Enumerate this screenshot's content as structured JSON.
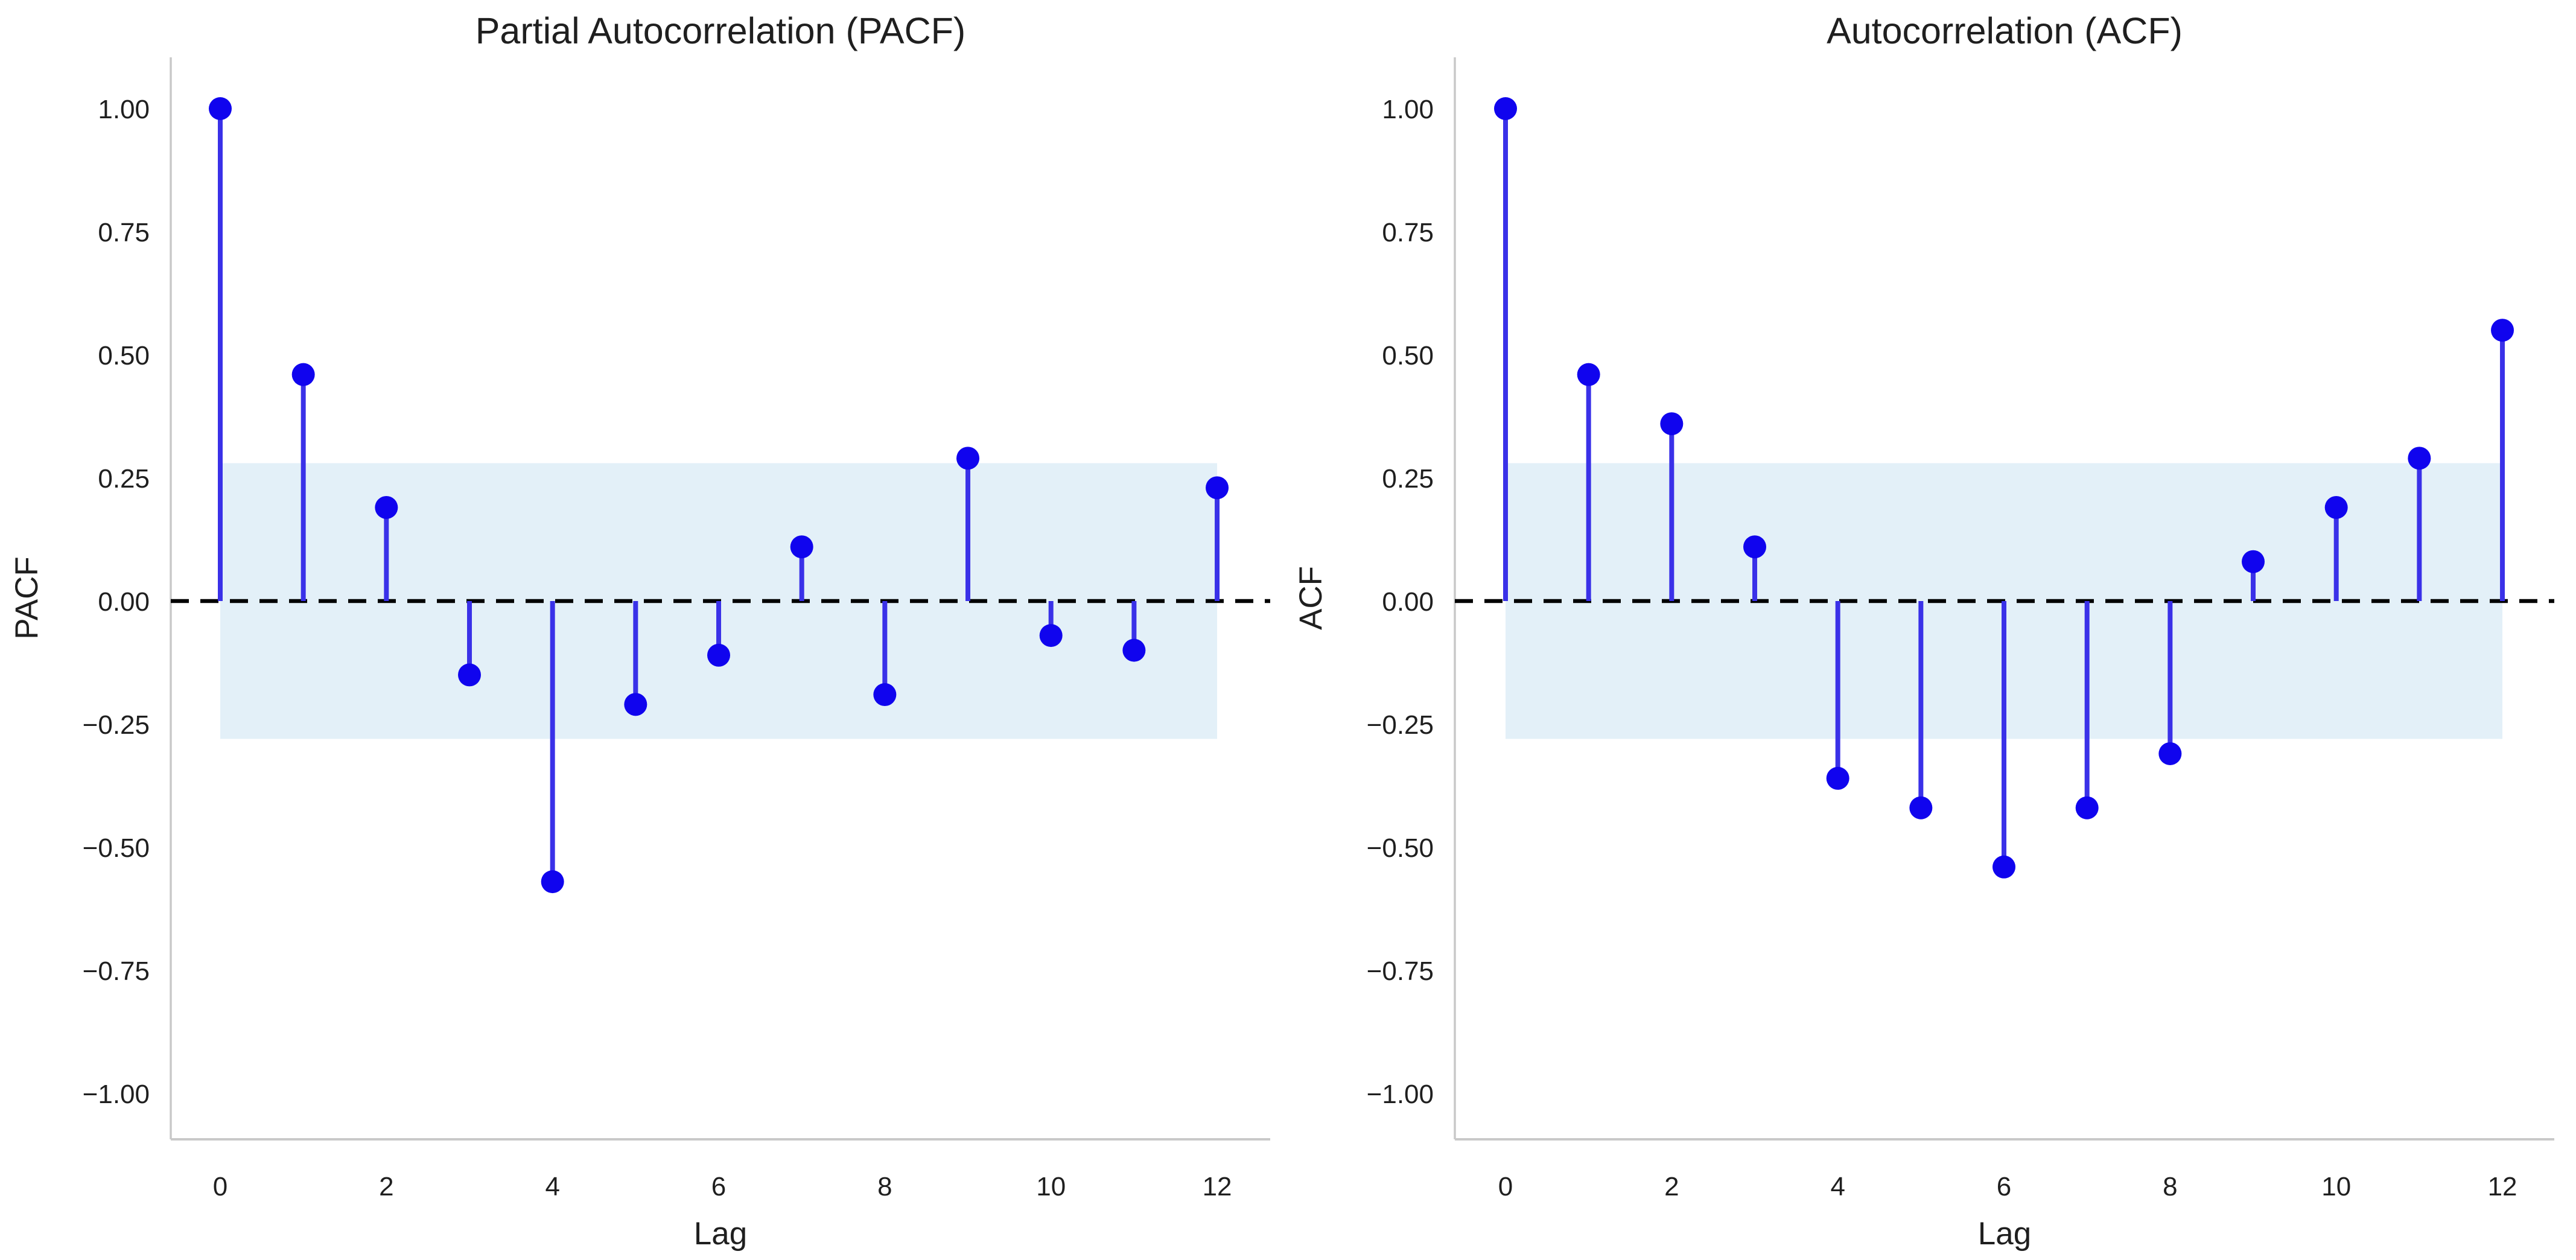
{
  "figure": {
    "background_color": "#ffffff",
    "stem_color": "#3a31e8",
    "marker_color": "#1004ee",
    "band_color": "#e3f0f8",
    "zero_line_color": "#000000",
    "spine_color": "#c9c9c9",
    "text_color": "#1f1f1f"
  },
  "chart_data": [
    {
      "type": "stem",
      "title": "Partial Autocorrelation (PACF)",
      "xlabel": "Lag",
      "ylabel": "PACF",
      "x": [
        0,
        1,
        2,
        3,
        4,
        5,
        6,
        7,
        8,
        9,
        10,
        11,
        12
      ],
      "values": [
        1.0,
        0.46,
        0.19,
        -0.15,
        -0.57,
        -0.21,
        -0.11,
        0.11,
        -0.19,
        0.29,
        -0.07,
        -0.1,
        0.23
      ],
      "confidence_band": 0.28,
      "zero_line": true,
      "grid": false,
      "ylim": [
        -1.1,
        1.1
      ],
      "xticks": [
        0,
        2,
        4,
        6,
        8,
        10,
        12
      ],
      "xtick_labels": [
        "0",
        "2",
        "4",
        "6",
        "8",
        "10",
        "12"
      ],
      "yticks": [
        1.0,
        0.75,
        0.5,
        0.25,
        0.0,
        -0.25,
        -0.5,
        -0.75,
        -1.0
      ],
      "ytick_labels": [
        "1.00",
        "0.75",
        "0.50",
        "0.25",
        "0.00",
        "−0.25",
        "−0.50",
        "−0.75",
        "−1.00"
      ]
    },
    {
      "type": "stem",
      "title": "Autocorrelation (ACF)",
      "xlabel": "Lag",
      "ylabel": "ACF",
      "x": [
        0,
        1,
        2,
        3,
        4,
        5,
        6,
        7,
        8,
        9,
        10,
        11,
        12
      ],
      "values": [
        1.0,
        0.46,
        0.36,
        0.11,
        -0.36,
        -0.42,
        -0.54,
        -0.42,
        -0.31,
        0.08,
        0.19,
        0.29,
        0.55
      ],
      "confidence_band": 0.28,
      "zero_line": true,
      "grid": false,
      "ylim": [
        -1.1,
        1.1
      ],
      "xticks": [
        0,
        2,
        4,
        6,
        8,
        10,
        12
      ],
      "xtick_labels": [
        "0",
        "2",
        "4",
        "6",
        "8",
        "10",
        "12"
      ],
      "yticks": [
        1.0,
        0.75,
        0.5,
        0.25,
        0.0,
        -0.25,
        -0.5,
        -0.75,
        -1.0
      ],
      "ytick_labels": [
        "1.00",
        "0.75",
        "0.50",
        "0.25",
        "0.00",
        "−0.25",
        "−0.50",
        "−0.75",
        "−1.00"
      ]
    }
  ]
}
